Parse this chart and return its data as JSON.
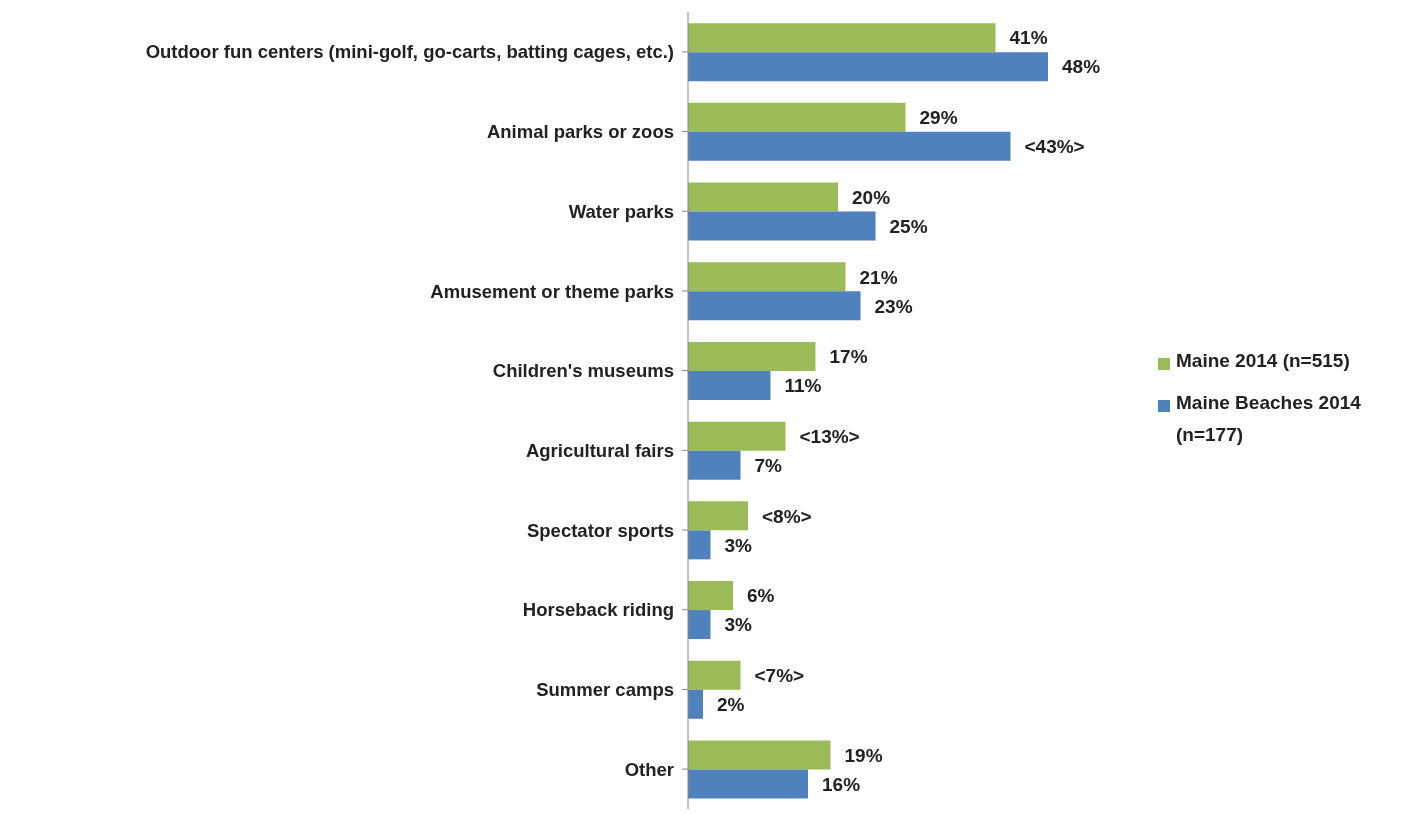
{
  "chart_data": {
    "type": "bar",
    "orientation": "horizontal",
    "categories": [
      "Outdoor fun centers (mini-golf, go-carts, batting cages, etc.)",
      "Animal parks or zoos",
      "Water parks",
      "Amusement or theme parks",
      "Children's museums",
      "Agricultural fairs",
      "Spectator sports",
      "Horseback riding",
      "Summer camps",
      "Other"
    ],
    "series": [
      {
        "name": "Maine 2014 (n=515)",
        "color": "#9bbb59",
        "values": [
          41,
          29,
          20,
          21,
          17,
          13,
          8,
          6,
          7,
          19
        ],
        "value_labels": [
          "41%",
          "29%",
          "20%",
          "21%",
          "17%",
          "<13%>",
          "<8%>",
          "6%",
          "<7%>",
          "19%"
        ]
      },
      {
        "name": "Maine Beaches 2014 (n=177)",
        "color": "#4f81bd",
        "values": [
          48,
          43,
          25,
          23,
          11,
          7,
          3,
          3,
          2,
          16
        ],
        "value_labels": [
          "48%",
          "<43%>",
          "25%",
          "23%",
          "11%",
          "7%",
          "3%",
          "3%",
          "2%",
          "16%"
        ]
      }
    ],
    "legend": "right"
  }
}
